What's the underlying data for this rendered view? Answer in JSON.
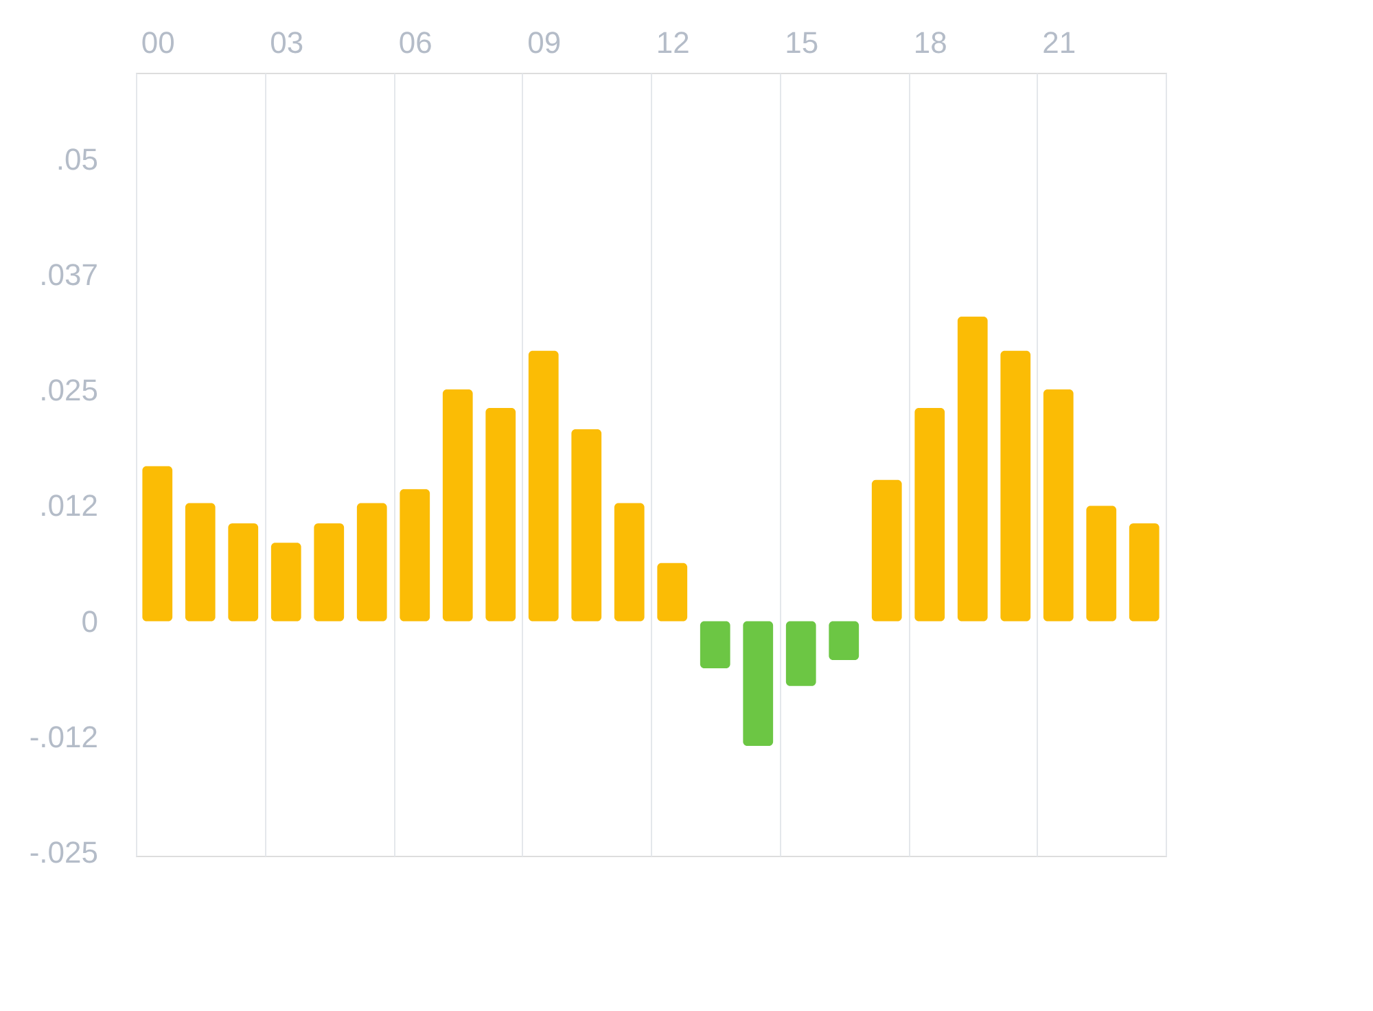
{
  "chart_data": {
    "type": "bar",
    "categories": [
      "00",
      null,
      null,
      "03",
      null,
      null,
      "06",
      null,
      null,
      "09",
      null,
      null,
      "12",
      null,
      null,
      "15",
      null,
      null,
      "18",
      null,
      null,
      "21",
      null,
      null
    ],
    "values": [
      0.0168,
      0.0128,
      0.0106,
      0.0085,
      0.0106,
      0.0128,
      0.0143,
      0.0251,
      0.0231,
      0.0293,
      0.0208,
      0.0128,
      0.0063,
      -0.0051,
      -0.0135,
      -0.007,
      -0.0042,
      0.0153,
      0.0231,
      0.033,
      0.0293,
      0.0251,
      0.0125,
      0.0106
    ],
    "colors": [
      "#fbbc05",
      "#fbbc05",
      "#fbbc05",
      "#fbbc05",
      "#fbbc05",
      "#fbbc05",
      "#fbbc05",
      "#fbbc05",
      "#fbbc05",
      "#fbbc05",
      "#fbbc05",
      "#fbbc05",
      "#fbbc05",
      "#6cc644",
      "#6cc644",
      "#6cc644",
      "#6cc644",
      "#fbbc05",
      "#fbbc05",
      "#fbbc05",
      "#fbbc05",
      "#fbbc05",
      "#fbbc05",
      "#fbbc05"
    ],
    "ylim": [
      -0.0254,
      0.0594
    ],
    "yticks": [
      {
        "value": -0.025,
        "label": "-.025"
      },
      {
        "value": -0.0125,
        "label": "-.012"
      },
      {
        "value": 0,
        "label": "0"
      },
      {
        "value": 0.0125,
        "label": ".012"
      },
      {
        "value": 0.025,
        "label": ".025"
      },
      {
        "value": 0.0375,
        "label": ".037"
      },
      {
        "value": 0.05,
        "label": ".05"
      }
    ],
    "grid": "x",
    "legend": false
  }
}
